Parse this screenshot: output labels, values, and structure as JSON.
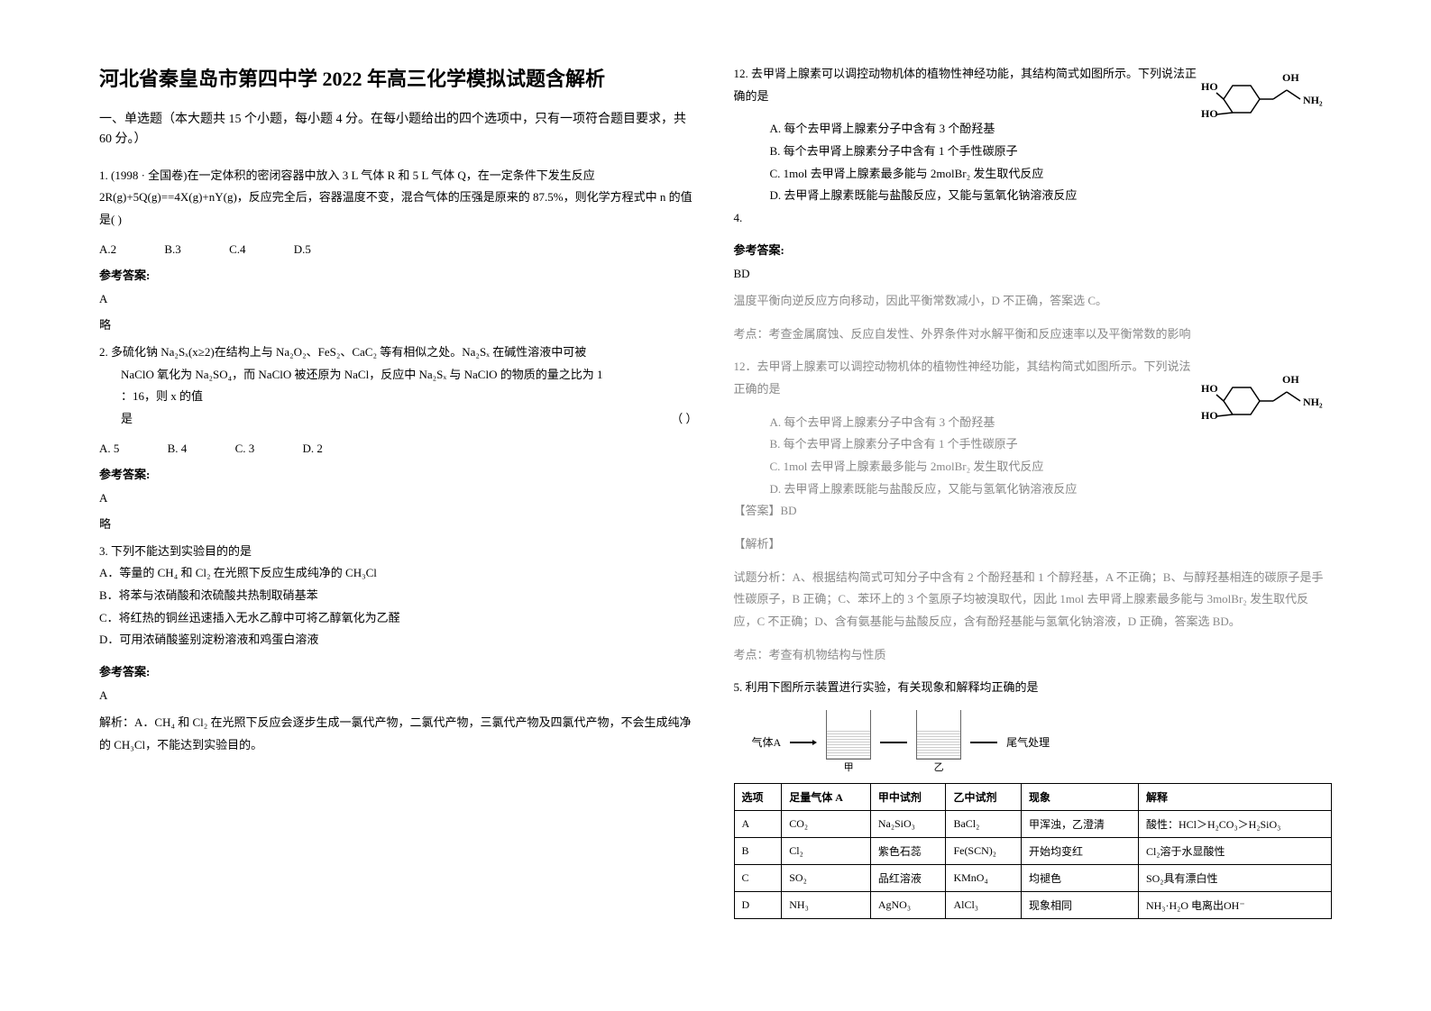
{
  "title": "河北省秦皇岛市第四中学 2022 年高三化学模拟试题含解析",
  "section1_header": "一、单选题（本大题共 15 个小题，每小题 4 分。在每小题给出的四个选项中，只有一项符合题目要求，共 60 分。）",
  "q1": {
    "text": "1. (1998 · 全国卷)在一定体积的密闭容器中放入 3 L 气体 R 和 5 L 气体 Q，在一定条件下发生反应 2R(g)+5Q(g)==4X(g)+nY(g)，反应完全后，容器温度不变，混合气体的压强是原来的 87.5%，则化学方程式中 n 的值是(    )",
    "optA": "A.2",
    "optB": "B.3",
    "optC": "C.4",
    "optD": "D.5",
    "answer_label": "参考答案:",
    "answer": "A",
    "explain": "略"
  },
  "q2": {
    "text": "2. 多硫化钠 Na₂Sₓ(x≥2)在结构上与 Na₂O₂、FeS₂、CaC₂ 等有相似之处。Na₂Sₓ 在碱性溶液中可被",
    "line2": "NaClO 氧化为 Na₂SO₄，而 NaClO 被还原为 NaCl，反应中 Na₂Sₓ 与 NaClO 的物质的量之比为 1",
    "line3": "：16，则 x 的值",
    "line4": "是",
    "paren": "（        ）",
    "optA": "A. 5",
    "optB": "B. 4",
    "optC": "C. 3",
    "optD": "D. 2",
    "answer_label": "参考答案:",
    "answer": "A",
    "explain": "略"
  },
  "q3": {
    "text": "3. 下列不能达到实验目的的是",
    "optA": "A．等量的 CH₄ 和 Cl₂ 在光照下反应生成纯净的 CH₃Cl",
    "optB": "B．将苯与浓硝酸和浓硫酸共热制取硝基苯",
    "optC": "C．将红热的铜丝迅速插入无水乙醇中可将乙醇氧化为乙醛",
    "optD": "D．可用浓硝酸鉴别淀粉溶液和鸡蛋白溶液",
    "answer_label": "参考答案:",
    "answer": "A",
    "explain": "解析：A．CH₄ 和 Cl₂ 在光照下反应会逐步生成一氯代产物，二氯代产物，三氯代产物及四氯代产物，不会生成纯净的 CH₃Cl，不能达到实验目的。"
  },
  "q12": {
    "text": "12. 去甲肾上腺素可以调控动物机体的植物性神经功能，其结构简式如图所示。下列说法正确的是",
    "optA": "A. 每个去甲肾上腺素分子中含有 3 个酚羟基",
    "optB": "B. 每个去甲肾上腺素分子中含有 1 个手性碳原子",
    "optC": "C. 1mol 去甲肾上腺素最多能与 2molBr₂ 发生取代反应",
    "optD": "D. 去甲肾上腺素既能与盐酸反应，又能与氢氧化钠溶液反应",
    "num4": "4.",
    "answer_label": "参考答案:",
    "answer": "BD",
    "explain1": "温度平衡向逆反应方向移动，因此平衡常数减小，D 不正确，答案选 C。",
    "explain2": "考点：考查金属腐蚀、反应自发性、外界条件对水解平衡和反应速率以及平衡常数的影响"
  },
  "q12b": {
    "text": "12．去甲肾上腺素可以调控动物机体的植物性神经功能，其结构简式如图所示。下列说法正确的是",
    "optA": "A. 每个去甲肾上腺素分子中含有 3 个酚羟基",
    "optB": "B. 每个去甲肾上腺素分子中含有 1 个手性碳原子",
    "optC": "C. 1mol 去甲肾上腺素最多能与 2molBr₂ 发生取代反应",
    "optD": "D. 去甲肾上腺素既能与盐酸反应，又能与氢氧化钠溶液反应",
    "answer_label": "【答案】BD",
    "explain_label": "【解析】",
    "explain": "试题分析：A、根据结构简式可知分子中含有 2 个酚羟基和 1 个醇羟基，A 不正确；B、与醇羟基相连的碳原子是手性碳原子，B 正确；C、苯环上的 3 个氢原子均被溴取代，因此 1mol 去甲肾上腺素最多能与 3molBr₂ 发生取代反应，C 不正确；D、含有氨基能与盐酸反应，含有酚羟基能与氢氧化钠溶液，D 正确，答案选 BD。",
    "point": "考点：考查有机物结构与性质"
  },
  "q5": {
    "text": "5. 利用下图所示装置进行实验，有关现象和解释均正确的是",
    "apparatus_label_left": "气体A",
    "apparatus_label_right": "尾气处理",
    "apparatus_label_bottom1": "甲",
    "apparatus_label_bottom2": "乙"
  },
  "table": {
    "headers": [
      "选项",
      "足量气体 A",
      "甲中试剂",
      "乙中试剂",
      "现象",
      "解释"
    ],
    "rows": [
      [
        "A",
        "CO₂",
        "Na₂SiO₃",
        "BaCl₂",
        "甲浑浊，乙澄清",
        "酸性：HCl＞H₂CO₃＞H₂SiO₃"
      ],
      [
        "B",
        "Cl₂",
        "紫色石蕊",
        "Fe(SCN)₂",
        "开始均变红",
        "Cl₂溶于水显酸性"
      ],
      [
        "C",
        "SO₂",
        "品红溶液",
        "KMnO₄",
        "均褪色",
        "SO₂具有漂白性"
      ],
      [
        "D",
        "NH₃",
        "AgNO₃",
        "AlCl₃",
        "现象相同",
        "NH₃·H₂O 电离出OH⁻"
      ]
    ]
  },
  "molecule": {
    "oh": "OH",
    "nh2": "NH₂",
    "ho1": "HO",
    "ho2": "HO"
  }
}
